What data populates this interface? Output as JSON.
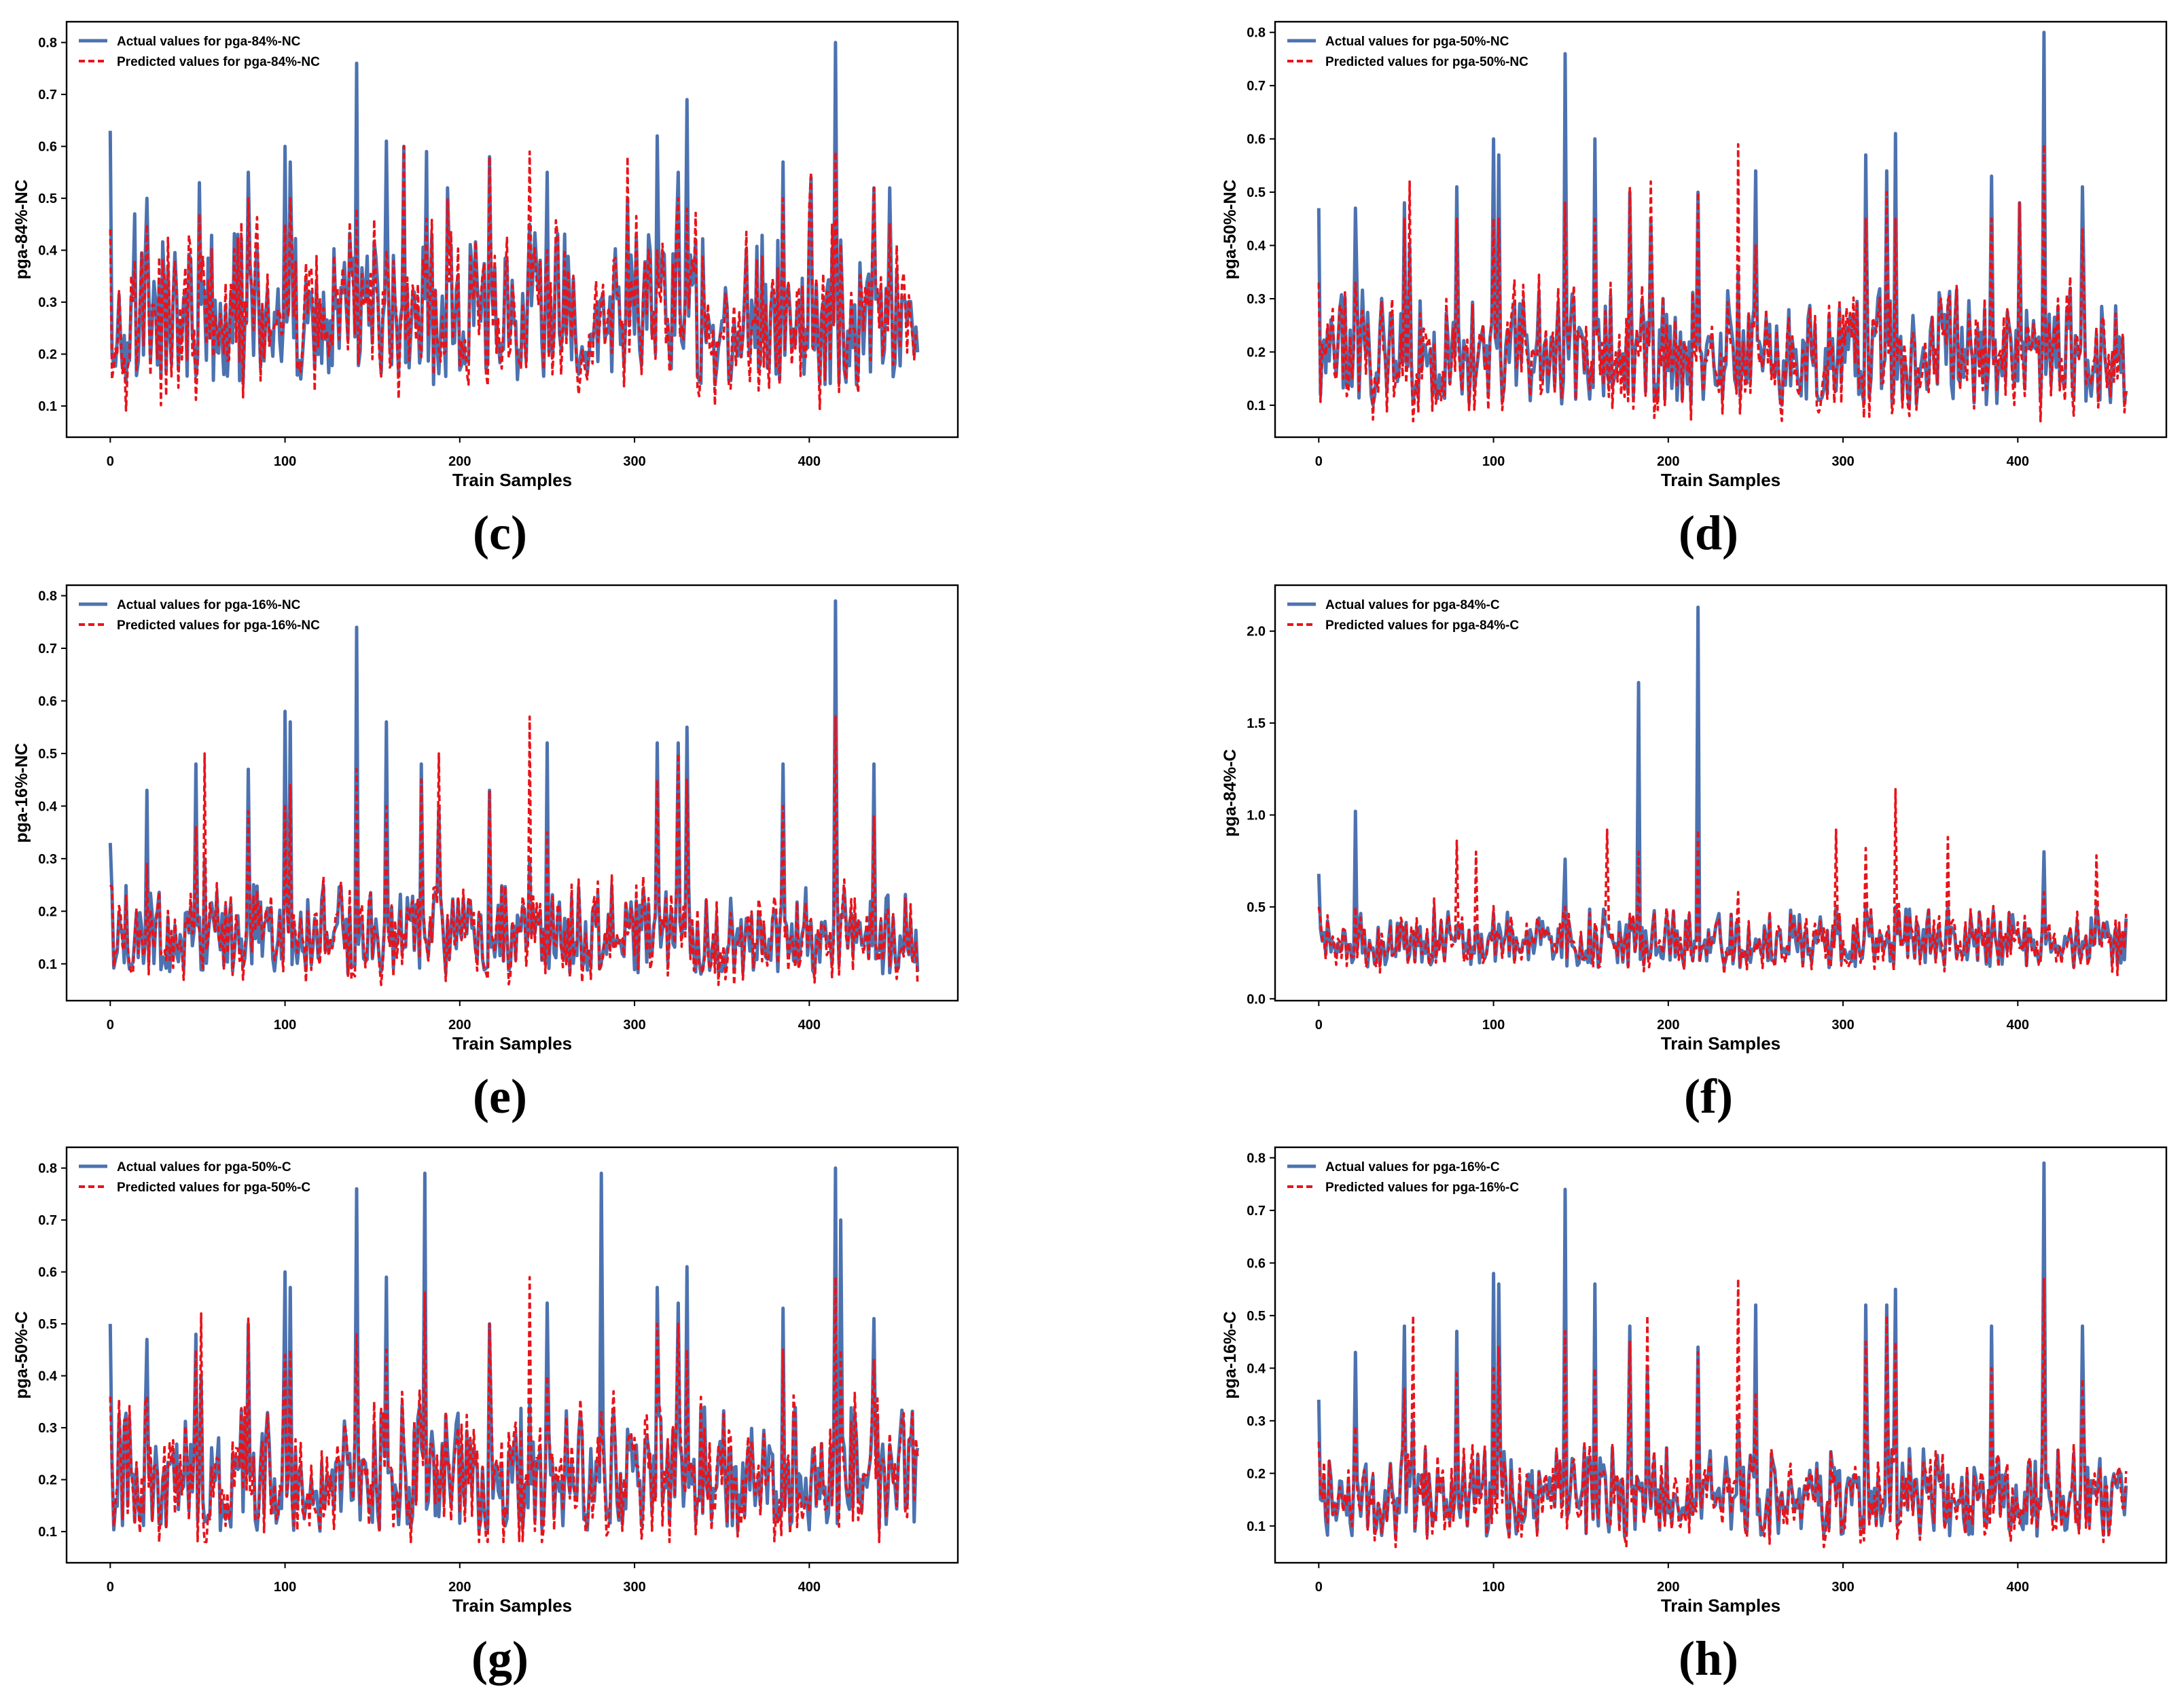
{
  "colors": {
    "actual": "#4c72b0",
    "predicted": "#e8141b",
    "frame": "#000000",
    "background": "#ffffff"
  },
  "chart_data": [
    {
      "id": "c",
      "panel_label": "(c)",
      "type": "line",
      "xlabel": "Train Samples",
      "ylabel": "pga-84%-NC",
      "xticks": [
        "0",
        "100",
        "200",
        "300",
        "400"
      ],
      "xtick_values": [
        0,
        100,
        200,
        300,
        400
      ],
      "yticks": [
        "0.1",
        "0.2",
        "0.3",
        "0.4",
        "0.5",
        "0.6",
        "0.7",
        "0.8"
      ],
      "ytick_values": [
        0.1,
        0.2,
        0.3,
        0.4,
        0.5,
        0.6,
        0.7,
        0.8
      ],
      "xlim": [
        -25,
        485
      ],
      "ylim": [
        0.04,
        0.84
      ],
      "legend": [
        "Actual values for pga-84%-NC",
        "Predicted values for pga-84%-NC"
      ],
      "legend_position": "top-left",
      "n_samples": 463,
      "series_stats": {
        "base": 0.26,
        "spread": 0.12,
        "min": 0.06
      },
      "peaks": [
        [
          0,
          0.63,
          0.44
        ],
        [
          14,
          0.47,
          0.38
        ],
        [
          21,
          0.5,
          0.45
        ],
        [
          51,
          0.53,
          0.47
        ],
        [
          79,
          0.55,
          0.5
        ],
        [
          100,
          0.6,
          0.45
        ],
        [
          103,
          0.57,
          0.5
        ],
        [
          141,
          0.76,
          0.48
        ],
        [
          158,
          0.61,
          0.4
        ],
        [
          168,
          0.6,
          0.6
        ],
        [
          181,
          0.59,
          0.46
        ],
        [
          193,
          0.52,
          0.5
        ],
        [
          217,
          0.58,
          0.58
        ],
        [
          240,
          0.45,
          0.59
        ],
        [
          250,
          0.55,
          0.4
        ],
        [
          296,
          0.5,
          0.58
        ],
        [
          313,
          0.62,
          0.4
        ],
        [
          325,
          0.55,
          0.5
        ],
        [
          330,
          0.69,
          0.48
        ],
        [
          385,
          0.57,
          0.5
        ],
        [
          401,
          0.54,
          0.55
        ],
        [
          415,
          0.8,
          0.59
        ],
        [
          437,
          0.52,
          0.52
        ],
        [
          446,
          0.52,
          0.45
        ]
      ]
    },
    {
      "id": "d",
      "panel_label": "(d)",
      "type": "line",
      "xlabel": "Train Samples",
      "ylabel": "pga-50%-NC",
      "xticks": [
        "0",
        "100",
        "200",
        "300",
        "400"
      ],
      "xtick_values": [
        0,
        100,
        200,
        300,
        400
      ],
      "yticks": [
        "0.1",
        "0.2",
        "0.3",
        "0.4",
        "0.5",
        "0.6",
        "0.7",
        "0.8"
      ],
      "ytick_values": [
        0.1,
        0.2,
        0.3,
        0.4,
        0.5,
        0.6,
        0.7,
        0.8
      ],
      "xlim": [
        -25,
        485
      ],
      "ylim": [
        0.04,
        0.82
      ],
      "legend": [
        "Actual values for pga-50%-NC",
        "Predicted values for pga-50%-NC"
      ],
      "legend_position": "top-left",
      "n_samples": 463,
      "series_stats": {
        "base": 0.19,
        "spread": 0.09,
        "min": 0.06
      },
      "peaks": [
        [
          0,
          0.47,
          0.33
        ],
        [
          21,
          0.47,
          0.33
        ],
        [
          49,
          0.48,
          0.45
        ],
        [
          52,
          0.4,
          0.52
        ],
        [
          79,
          0.51,
          0.45
        ],
        [
          100,
          0.6,
          0.45
        ],
        [
          103,
          0.57,
          0.45
        ],
        [
          141,
          0.76,
          0.48
        ],
        [
          158,
          0.6,
          0.45
        ],
        [
          178,
          0.5,
          0.51
        ],
        [
          190,
          0.45,
          0.52
        ],
        [
          217,
          0.5,
          0.5
        ],
        [
          240,
          0.35,
          0.59
        ],
        [
          250,
          0.54,
          0.4
        ],
        [
          313,
          0.57,
          0.45
        ],
        [
          325,
          0.54,
          0.5
        ],
        [
          330,
          0.61,
          0.45
        ],
        [
          385,
          0.53,
          0.45
        ],
        [
          401,
          0.48,
          0.48
        ],
        [
          415,
          0.8,
          0.59
        ],
        [
          437,
          0.51,
          0.43
        ]
      ]
    },
    {
      "id": "e",
      "panel_label": "(e)",
      "type": "line",
      "xlabel": "Train Samples",
      "ylabel": "pga-16%-NC",
      "xticks": [
        "0",
        "100",
        "200",
        "300",
        "400"
      ],
      "xtick_values": [
        0,
        100,
        200,
        300,
        400
      ],
      "yticks": [
        "0.1",
        "0.2",
        "0.3",
        "0.4",
        "0.5",
        "0.6",
        "0.7",
        "0.8"
      ],
      "ytick_values": [
        0.1,
        0.2,
        0.3,
        0.4,
        0.5,
        0.6,
        0.7,
        0.8
      ],
      "xlim": [
        -25,
        485
      ],
      "ylim": [
        0.03,
        0.82
      ],
      "legend": [
        "Actual values for pga-16%-NC",
        "Predicted values for pga-16%-NC"
      ],
      "legend_position": "top-left",
      "n_samples": 463,
      "series_stats": {
        "base": 0.15,
        "spread": 0.07,
        "min": 0.05
      },
      "peaks": [
        [
          0,
          0.33,
          0.25
        ],
        [
          21,
          0.43,
          0.29
        ],
        [
          49,
          0.48,
          0.36
        ],
        [
          54,
          0.3,
          0.5
        ],
        [
          79,
          0.47,
          0.39
        ],
        [
          100,
          0.58,
          0.4
        ],
        [
          103,
          0.56,
          0.44
        ],
        [
          141,
          0.74,
          0.47
        ],
        [
          158,
          0.56,
          0.4
        ],
        [
          178,
          0.48,
          0.45
        ],
        [
          188,
          0.4,
          0.5
        ],
        [
          217,
          0.43,
          0.43
        ],
        [
          240,
          0.3,
          0.57
        ],
        [
          250,
          0.52,
          0.35
        ],
        [
          313,
          0.52,
          0.45
        ],
        [
          325,
          0.52,
          0.5
        ],
        [
          330,
          0.55,
          0.45
        ],
        [
          385,
          0.48,
          0.4
        ],
        [
          415,
          0.79,
          0.57
        ],
        [
          437,
          0.48,
          0.38
        ]
      ]
    },
    {
      "id": "f",
      "panel_label": "(f)",
      "type": "line",
      "xlabel": "Train Samples",
      "ylabel": "pga-84%-C",
      "xticks": [
        "0",
        "100",
        "200",
        "300",
        "400"
      ],
      "xtick_values": [
        0,
        100,
        200,
        300,
        400
      ],
      "yticks": [
        "0.0",
        "0.5",
        "1.0",
        "1.5",
        "2.0"
      ],
      "ytick_values": [
        0.0,
        0.5,
        1.0,
        1.5,
        2.0
      ],
      "xlim": [
        -25,
        485
      ],
      "ylim": [
        -0.01,
        2.25
      ],
      "legend": [
        "Actual values for pga-84%-C",
        "Predicted values for pga-84%-C"
      ],
      "legend_position": "top-left",
      "n_samples": 463,
      "series_stats": {
        "base": 0.3,
        "spread": 0.13,
        "min": 0.05
      },
      "peaks": [
        [
          0,
          0.68,
          0.5
        ],
        [
          21,
          1.02,
          0.5
        ],
        [
          79,
          0.4,
          0.86
        ],
        [
          90,
          0.4,
          0.8
        ],
        [
          141,
          0.76,
          0.5
        ],
        [
          165,
          0.4,
          0.92
        ],
        [
          183,
          1.72,
          0.8
        ],
        [
          217,
          2.13,
          0.92
        ],
        [
          240,
          0.4,
          0.58
        ],
        [
          296,
          0.5,
          0.92
        ],
        [
          313,
          0.5,
          0.82
        ],
        [
          330,
          0.5,
          1.14
        ],
        [
          360,
          0.5,
          0.88
        ],
        [
          415,
          0.8,
          0.58
        ],
        [
          445,
          0.5,
          0.78
        ]
      ]
    },
    {
      "id": "g",
      "panel_label": "(g)",
      "type": "line",
      "xlabel": "Train Samples",
      "ylabel": "pga-50%-C",
      "xticks": [
        "0",
        "100",
        "200",
        "300",
        "400"
      ],
      "xtick_values": [
        0,
        100,
        200,
        300,
        400
      ],
      "yticks": [
        "0.1",
        "0.2",
        "0.3",
        "0.4",
        "0.5",
        "0.6",
        "0.7",
        "0.8"
      ],
      "ytick_values": [
        0.1,
        0.2,
        0.3,
        0.4,
        0.5,
        0.6,
        0.7,
        0.8
      ],
      "xlim": [
        -25,
        485
      ],
      "ylim": [
        0.04,
        0.84
      ],
      "legend": [
        "Actual values for pga-50%-C",
        "Predicted values for pga-50%-C"
      ],
      "legend_position": "top-left",
      "n_samples": 463,
      "series_stats": {
        "base": 0.2,
        "spread": 0.1,
        "min": 0.07
      },
      "peaks": [
        [
          0,
          0.5,
          0.36
        ],
        [
          21,
          0.47,
          0.36
        ],
        [
          49,
          0.48,
          0.45
        ],
        [
          52,
          0.4,
          0.52
        ],
        [
          79,
          0.5,
          0.51
        ],
        [
          100,
          0.6,
          0.44
        ],
        [
          103,
          0.57,
          0.45
        ],
        [
          141,
          0.76,
          0.48
        ],
        [
          158,
          0.59,
          0.45
        ],
        [
          180,
          0.79,
          0.56
        ],
        [
          217,
          0.5,
          0.5
        ],
        [
          240,
          0.35,
          0.59
        ],
        [
          250,
          0.54,
          0.4
        ],
        [
          281,
          0.79,
          0.33
        ],
        [
          313,
          0.57,
          0.5
        ],
        [
          325,
          0.54,
          0.5
        ],
        [
          330,
          0.61,
          0.45
        ],
        [
          385,
          0.53,
          0.45
        ],
        [
          415,
          0.8,
          0.59
        ],
        [
          418,
          0.7,
          0.45
        ],
        [
          437,
          0.51,
          0.43
        ]
      ]
    },
    {
      "id": "h",
      "panel_label": "(h)",
      "type": "line",
      "xlabel": "Train Samples",
      "ylabel": "pga-16%-C",
      "xticks": [
        "0",
        "100",
        "200",
        "300",
        "400"
      ],
      "xtick_values": [
        0,
        100,
        200,
        300,
        400
      ],
      "yticks": [
        "0.1",
        "0.2",
        "0.3",
        "0.4",
        "0.5",
        "0.6",
        "0.7",
        "0.8"
      ],
      "ytick_values": [
        0.1,
        0.2,
        0.3,
        0.4,
        0.5,
        0.6,
        0.7,
        0.8
      ],
      "xlim": [
        -25,
        485
      ],
      "ylim": [
        0.03,
        0.82
      ],
      "legend": [
        "Actual values for pga-16%-C",
        "Predicted values for pga-16%-C"
      ],
      "legend_position": "top-left",
      "n_samples": 463,
      "series_stats": {
        "base": 0.15,
        "spread": 0.07,
        "min": 0.05
      },
      "peaks": [
        [
          0,
          0.34,
          0.26
        ],
        [
          21,
          0.43,
          0.29
        ],
        [
          49,
          0.48,
          0.36
        ],
        [
          54,
          0.3,
          0.5
        ],
        [
          79,
          0.47,
          0.39
        ],
        [
          100,
          0.58,
          0.4
        ],
        [
          103,
          0.56,
          0.44
        ],
        [
          141,
          0.74,
          0.47
        ],
        [
          158,
          0.56,
          0.4
        ],
        [
          178,
          0.48,
          0.45
        ],
        [
          188,
          0.4,
          0.5
        ],
        [
          217,
          0.44,
          0.43
        ],
        [
          240,
          0.3,
          0.57
        ],
        [
          250,
          0.52,
          0.35
        ],
        [
          313,
          0.52,
          0.45
        ],
        [
          325,
          0.52,
          0.5
        ],
        [
          330,
          0.55,
          0.45
        ],
        [
          385,
          0.48,
          0.4
        ],
        [
          415,
          0.79,
          0.57
        ],
        [
          437,
          0.48,
          0.38
        ]
      ]
    }
  ]
}
